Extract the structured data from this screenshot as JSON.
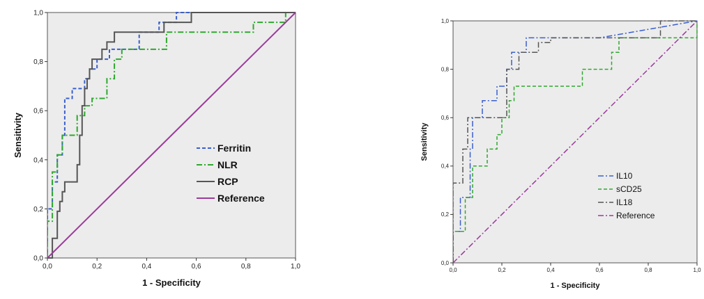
{
  "chart_data": [
    {
      "type": "line",
      "title": "",
      "xlabel": "1 - Specificity",
      "ylabel": "Sensitivity",
      "xlim": [
        0,
        1
      ],
      "ylim": [
        0,
        1
      ],
      "xticks": [
        "0,0",
        "0,2",
        "0,4",
        "0,6",
        "0,8",
        "1,0"
      ],
      "yticks": [
        "0,0",
        "0,2",
        "0,4",
        "0,6",
        "0,8",
        "1,0"
      ],
      "grid": false,
      "legend_position": "bottom-right",
      "series": [
        {
          "name": "Ferritin",
          "color": "#3a5fcd",
          "style": "dashed",
          "points": [
            [
              0,
              0
            ],
            [
              0,
              0.2
            ],
            [
              0.02,
              0.2
            ],
            [
              0.02,
              0.31
            ],
            [
              0.04,
              0.31
            ],
            [
              0.04,
              0.42
            ],
            [
              0.06,
              0.42
            ],
            [
              0.06,
              0.5
            ],
            [
              0.07,
              0.5
            ],
            [
              0.07,
              0.65
            ],
            [
              0.1,
              0.65
            ],
            [
              0.1,
              0.69
            ],
            [
              0.15,
              0.69
            ],
            [
              0.15,
              0.73
            ],
            [
              0.17,
              0.73
            ],
            [
              0.17,
              0.77
            ],
            [
              0.2,
              0.77
            ],
            [
              0.2,
              0.81
            ],
            [
              0.25,
              0.81
            ],
            [
              0.25,
              0.85
            ],
            [
              0.37,
              0.85
            ],
            [
              0.37,
              0.92
            ],
            [
              0.45,
              0.92
            ],
            [
              0.45,
              0.96
            ],
            [
              0.52,
              0.96
            ],
            [
              0.52,
              1.0
            ],
            [
              1,
              1
            ]
          ]
        },
        {
          "name": "NLR",
          "color": "#2ea82e",
          "style": "dashdot",
          "points": [
            [
              0,
              0
            ],
            [
              0,
              0.15
            ],
            [
              0.02,
              0.15
            ],
            [
              0.02,
              0.35
            ],
            [
              0.04,
              0.35
            ],
            [
              0.04,
              0.42
            ],
            [
              0.06,
              0.42
            ],
            [
              0.06,
              0.5
            ],
            [
              0.12,
              0.5
            ],
            [
              0.12,
              0.58
            ],
            [
              0.15,
              0.58
            ],
            [
              0.15,
              0.62
            ],
            [
              0.18,
              0.62
            ],
            [
              0.18,
              0.65
            ],
            [
              0.24,
              0.65
            ],
            [
              0.24,
              0.73
            ],
            [
              0.27,
              0.73
            ],
            [
              0.27,
              0.81
            ],
            [
              0.3,
              0.81
            ],
            [
              0.3,
              0.85
            ],
            [
              0.48,
              0.85
            ],
            [
              0.48,
              0.92
            ],
            [
              0.83,
              0.92
            ],
            [
              0.83,
              0.96
            ],
            [
              0.96,
              0.96
            ],
            [
              0.96,
              1.0
            ],
            [
              1,
              1
            ]
          ]
        },
        {
          "name": "RCP",
          "color": "#555555",
          "style": "solid",
          "points": [
            [
              0,
              0
            ],
            [
              0.02,
              0
            ],
            [
              0.02,
              0.08
            ],
            [
              0.04,
              0.08
            ],
            [
              0.04,
              0.19
            ],
            [
              0.05,
              0.19
            ],
            [
              0.05,
              0.23
            ],
            [
              0.06,
              0.23
            ],
            [
              0.06,
              0.27
            ],
            [
              0.07,
              0.27
            ],
            [
              0.07,
              0.31
            ],
            [
              0.12,
              0.31
            ],
            [
              0.12,
              0.38
            ],
            [
              0.13,
              0.38
            ],
            [
              0.13,
              0.5
            ],
            [
              0.14,
              0.5
            ],
            [
              0.14,
              0.62
            ],
            [
              0.15,
              0.62
            ],
            [
              0.15,
              0.69
            ],
            [
              0.16,
              0.69
            ],
            [
              0.16,
              0.73
            ],
            [
              0.17,
              0.73
            ],
            [
              0.17,
              0.77
            ],
            [
              0.18,
              0.77
            ],
            [
              0.18,
              0.81
            ],
            [
              0.22,
              0.81
            ],
            [
              0.22,
              0.85
            ],
            [
              0.24,
              0.85
            ],
            [
              0.24,
              0.88
            ],
            [
              0.27,
              0.88
            ],
            [
              0.27,
              0.92
            ],
            [
              0.47,
              0.92
            ],
            [
              0.47,
              0.96
            ],
            [
              0.58,
              0.96
            ],
            [
              0.58,
              1.0
            ],
            [
              1,
              1
            ]
          ]
        },
        {
          "name": "Reference",
          "color": "#9b3a9b",
          "style": "solid",
          "points": [
            [
              0,
              0
            ],
            [
              1,
              1
            ]
          ]
        }
      ]
    },
    {
      "type": "line",
      "title": "",
      "xlabel": "1 - Specificity",
      "ylabel": "Sensitivity",
      "xlim": [
        0,
        1
      ],
      "ylim": [
        0,
        1
      ],
      "xticks": [
        "0,0",
        "0,2",
        "0,4",
        "0,6",
        "0,8",
        "1,0"
      ],
      "yticks": [
        "0,0",
        "0,2",
        "0,4",
        "0,6",
        "0,8",
        "1,0"
      ],
      "grid": false,
      "legend_position": "bottom-right",
      "series": [
        {
          "name": "IL10",
          "color": "#3a5fcd",
          "style": "dashdot",
          "points": [
            [
              0,
              0
            ],
            [
              0,
              0.13
            ],
            [
              0.03,
              0.13
            ],
            [
              0.03,
              0.27
            ],
            [
              0.07,
              0.27
            ],
            [
              0.07,
              0.47
            ],
            [
              0.08,
              0.47
            ],
            [
              0.08,
              0.6
            ],
            [
              0.12,
              0.6
            ],
            [
              0.12,
              0.67
            ],
            [
              0.18,
              0.67
            ],
            [
              0.18,
              0.73
            ],
            [
              0.22,
              0.73
            ],
            [
              0.22,
              0.8
            ],
            [
              0.24,
              0.8
            ],
            [
              0.24,
              0.87
            ],
            [
              0.3,
              0.87
            ],
            [
              0.3,
              0.93
            ],
            [
              0.6,
              0.93
            ],
            [
              1,
              1
            ]
          ]
        },
        {
          "name": "sCD25",
          "color": "#2ea82e",
          "style": "dashed",
          "points": [
            [
              0,
              0
            ],
            [
              0,
              0.13
            ],
            [
              0.05,
              0.13
            ],
            [
              0.05,
              0.27
            ],
            [
              0.08,
              0.27
            ],
            [
              0.08,
              0.4
            ],
            [
              0.14,
              0.4
            ],
            [
              0.14,
              0.47
            ],
            [
              0.18,
              0.47
            ],
            [
              0.18,
              0.53
            ],
            [
              0.2,
              0.53
            ],
            [
              0.2,
              0.6
            ],
            [
              0.23,
              0.6
            ],
            [
              0.23,
              0.67
            ],
            [
              0.25,
              0.67
            ],
            [
              0.25,
              0.73
            ],
            [
              0.53,
              0.73
            ],
            [
              0.53,
              0.8
            ],
            [
              0.65,
              0.8
            ],
            [
              0.65,
              0.87
            ],
            [
              0.68,
              0.87
            ],
            [
              0.68,
              0.93
            ],
            [
              1,
              0.93
            ],
            [
              1,
              1
            ]
          ]
        },
        {
          "name": "IL18",
          "color": "#555555",
          "style": "dashdot",
          "points": [
            [
              0,
              0
            ],
            [
              0,
              0.33
            ],
            [
              0.04,
              0.33
            ],
            [
              0.04,
              0.47
            ],
            [
              0.06,
              0.47
            ],
            [
              0.06,
              0.6
            ],
            [
              0.22,
              0.6
            ],
            [
              0.22,
              0.8
            ],
            [
              0.27,
              0.8
            ],
            [
              0.27,
              0.87
            ],
            [
              0.35,
              0.87
            ],
            [
              0.35,
              0.91
            ],
            [
              0.4,
              0.91
            ],
            [
              0.4,
              0.93
            ],
            [
              0.85,
              0.93
            ],
            [
              0.85,
              1.0
            ],
            [
              1,
              1
            ]
          ]
        },
        {
          "name": "Reference",
          "color": "#9b3a9b",
          "style": "dashdot",
          "points": [
            [
              0,
              0
            ],
            [
              1,
              1
            ]
          ]
        }
      ]
    }
  ]
}
